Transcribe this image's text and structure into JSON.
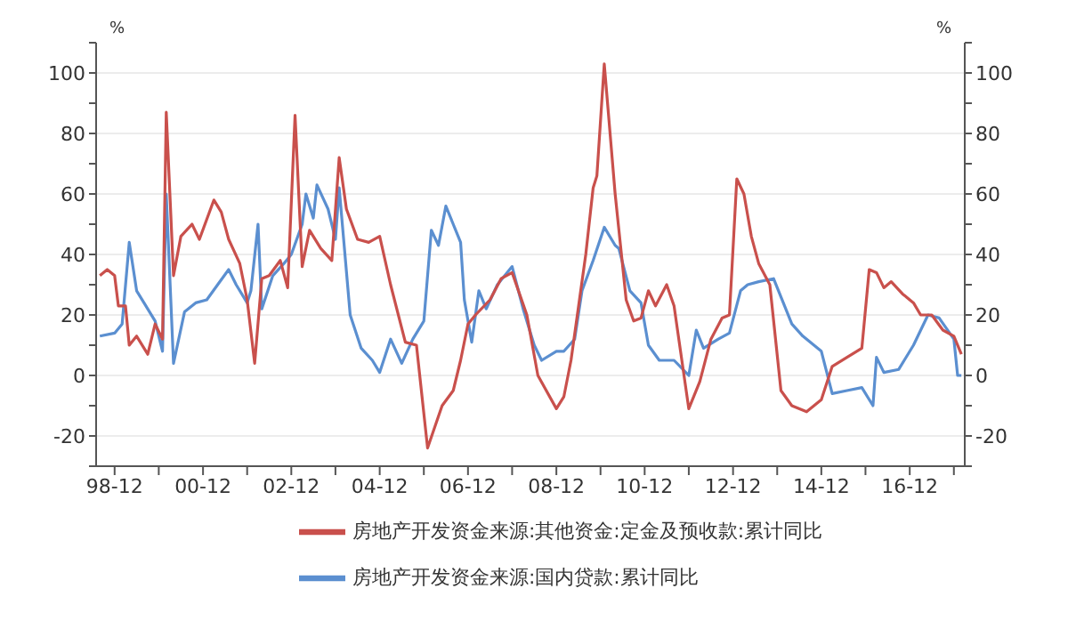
{
  "chart_data": {
    "type": "line",
    "ylabel": "%",
    "y2label": "%",
    "xlim": [
      "1998-07",
      "2018-03"
    ],
    "xticks": [
      {
        "value": "1998-12",
        "label": "98-12"
      },
      {
        "value": "1999-12",
        "label": null
      },
      {
        "value": "2000-12",
        "label": "00-12"
      },
      {
        "value": "2001-12",
        "label": null
      },
      {
        "value": "2002-12",
        "label": "02-12"
      },
      {
        "value": "2003-12",
        "label": null
      },
      {
        "value": "2004-12",
        "label": "04-12"
      },
      {
        "value": "2005-12",
        "label": null
      },
      {
        "value": "2006-12",
        "label": "06-12"
      },
      {
        "value": "2007-12",
        "label": null
      },
      {
        "value": "2008-12",
        "label": "08-12"
      },
      {
        "value": "2009-12",
        "label": null
      },
      {
        "value": "2010-12",
        "label": "10-12"
      },
      {
        "value": "2011-12",
        "label": null
      },
      {
        "value": "2012-12",
        "label": "12-12"
      },
      {
        "value": "2013-12",
        "label": null
      },
      {
        "value": "2014-12",
        "label": "14-12"
      },
      {
        "value": "2015-12",
        "label": null
      },
      {
        "value": "2016-12",
        "label": "16-12"
      },
      {
        "value": "2017-12",
        "label": null
      }
    ],
    "ylim": [
      -30,
      110
    ],
    "yticks": [
      {
        "value": -30,
        "label": null
      },
      -20,
      {
        "value": -10,
        "label": null
      },
      0,
      {
        "value": 10,
        "label": null
      },
      20,
      {
        "value": 30,
        "label": null
      },
      40,
      {
        "value": 50,
        "label": null
      },
      60,
      {
        "value": 70,
        "label": null
      },
      80,
      {
        "value": 90,
        "label": null
      },
      100,
      {
        "value": 110,
        "label": null
      }
    ],
    "y2lim": [
      -30,
      110
    ],
    "y2ticks": [
      {
        "value": -30,
        "label": null
      },
      -20,
      {
        "value": -10,
        "label": null
      },
      0,
      {
        "value": 10,
        "label": null
      },
      20,
      {
        "value": 30,
        "label": null
      },
      40,
      {
        "value": 50,
        "label": null
      },
      60,
      {
        "value": 70,
        "label": null
      },
      80,
      {
        "value": 90,
        "label": null
      },
      100,
      {
        "value": 110,
        "label": null
      }
    ],
    "grid": "y",
    "legend": "bottom",
    "marker": "none",
    "line_style": "solid",
    "series": [
      {
        "name": "房地产开发资金来源:国内贷款:累计同比",
        "color": "#5b8fd0",
        "x": [
          "1998-08",
          "1998-12",
          "1999-02",
          "1999-04",
          "1999-06",
          "1999-08",
          "1999-11",
          "2000-01",
          "2000-02",
          "2000-04",
          "2000-07",
          "2000-10",
          "2001-01",
          "2001-04",
          "2001-07",
          "2001-09",
          "2001-12",
          "2002-01",
          "2002-03",
          "2002-04",
          "2002-07",
          "2002-10",
          "2002-12",
          "2003-03",
          "2003-04",
          "2003-06",
          "2003-07",
          "2003-10",
          "2003-12",
          "2004-01",
          "2004-04",
          "2004-07",
          "2004-10",
          "2004-12",
          "2005-03",
          "2005-06",
          "2005-09",
          "2005-12",
          "2006-02",
          "2006-04",
          "2006-06",
          "2006-08",
          "2006-10",
          "2006-11",
          "2007-01",
          "2007-03",
          "2007-05",
          "2007-08",
          "2007-12",
          "2008-03",
          "2008-06",
          "2008-08",
          "2008-12",
          "2009-02",
          "2009-05",
          "2009-07",
          "2009-10",
          "2010-01",
          "2010-04",
          "2010-05",
          "2010-08",
          "2010-11",
          "2011-01",
          "2011-04",
          "2011-08",
          "2011-12",
          "2012-02",
          "2012-04",
          "2012-08",
          "2012-11",
          "2013-02",
          "2013-04",
          "2013-07",
          "2013-11",
          "2014-04",
          "2014-07",
          "2014-12",
          "2015-03",
          "2015-07",
          "2015-11",
          "2016-02",
          "2016-03",
          "2016-05",
          "2016-09",
          "2017-01",
          "2017-05",
          "2017-08",
          "2017-12",
          "2018-01",
          "2018-02"
        ],
        "values": [
          13,
          14,
          17,
          44,
          28,
          24,
          18,
          8,
          60,
          4,
          21,
          24,
          25,
          30,
          35,
          30,
          24,
          28,
          50,
          22,
          33,
          37,
          40,
          50,
          60,
          52,
          63,
          55,
          45,
          62,
          20,
          9,
          5,
          1,
          12,
          4,
          12,
          18,
          48,
          43,
          56,
          50,
          44,
          25,
          11,
          28,
          22,
          30,
          36,
          22,
          10,
          5,
          8,
          8,
          12,
          28,
          38,
          49,
          43,
          42,
          28,
          24,
          10,
          5,
          5,
          0,
          15,
          9,
          12,
          14,
          28,
          30,
          31,
          32,
          17,
          13,
          8,
          -6,
          -5,
          -4,
          -10,
          6,
          1,
          2,
          10,
          20,
          19,
          12,
          0,
          0
        ]
      },
      {
        "name": "房地产开发资金来源:其他资金:定金及预收款:累计同比",
        "color": "#c9504c",
        "x": [
          "1998-08",
          "1998-10",
          "1998-12",
          "1999-01",
          "1999-03",
          "1999-04",
          "1999-06",
          "1999-09",
          "1999-11",
          "2000-01",
          "2000-02",
          "2000-04",
          "2000-06",
          "2000-09",
          "2000-11",
          "2001-03",
          "2001-05",
          "2001-07",
          "2001-10",
          "2001-12",
          "2002-02",
          "2002-04",
          "2002-06",
          "2002-09",
          "2002-11",
          "2003-01",
          "2003-03",
          "2003-05",
          "2003-08",
          "2003-11",
          "2004-01",
          "2004-03",
          "2004-06",
          "2004-09",
          "2004-12",
          "2005-03",
          "2005-07",
          "2005-10",
          "2006-01",
          "2006-05",
          "2006-08",
          "2006-10",
          "2006-12",
          "2007-02",
          "2007-06",
          "2007-09",
          "2007-12",
          "2008-04",
          "2008-07",
          "2008-12",
          "2009-02",
          "2009-04",
          "2009-08",
          "2009-10",
          "2009-11",
          "2010-01",
          "2010-04",
          "2010-07",
          "2010-09",
          "2010-11",
          "2011-01",
          "2011-03",
          "2011-06",
          "2011-08",
          "2011-12",
          "2012-03",
          "2012-06",
          "2012-09",
          "2012-11",
          "2013-01",
          "2013-03",
          "2013-05",
          "2013-07",
          "2013-10",
          "2014-01",
          "2014-04",
          "2014-08",
          "2014-12",
          "2015-03",
          "2015-07",
          "2015-11",
          "2016-01",
          "2016-03",
          "2016-05",
          "2016-07",
          "2016-10",
          "2017-01",
          "2017-03",
          "2017-06",
          "2017-09",
          "2017-12",
          "2018-02"
        ],
        "values": [
          33,
          35,
          33,
          23,
          23,
          10,
          13,
          7,
          17,
          12,
          87,
          33,
          46,
          50,
          45,
          58,
          54,
          45,
          37,
          25,
          4,
          32,
          33,
          38,
          29,
          86,
          36,
          48,
          42,
          38,
          72,
          55,
          45,
          44,
          46,
          30,
          11,
          10,
          -24,
          -10,
          -5,
          5,
          17,
          20,
          25,
          32,
          34,
          20,
          0,
          -11,
          -7,
          5,
          40,
          62,
          66,
          103,
          60,
          25,
          18,
          19,
          28,
          23,
          30,
          23,
          -11,
          -2,
          12,
          19,
          20,
          65,
          60,
          46,
          37,
          30,
          -5,
          -10,
          -12,
          -8,
          3,
          6,
          9,
          35,
          34,
          29,
          31,
          27,
          24,
          20,
          20,
          15,
          13,
          7
        ]
      }
    ]
  }
}
